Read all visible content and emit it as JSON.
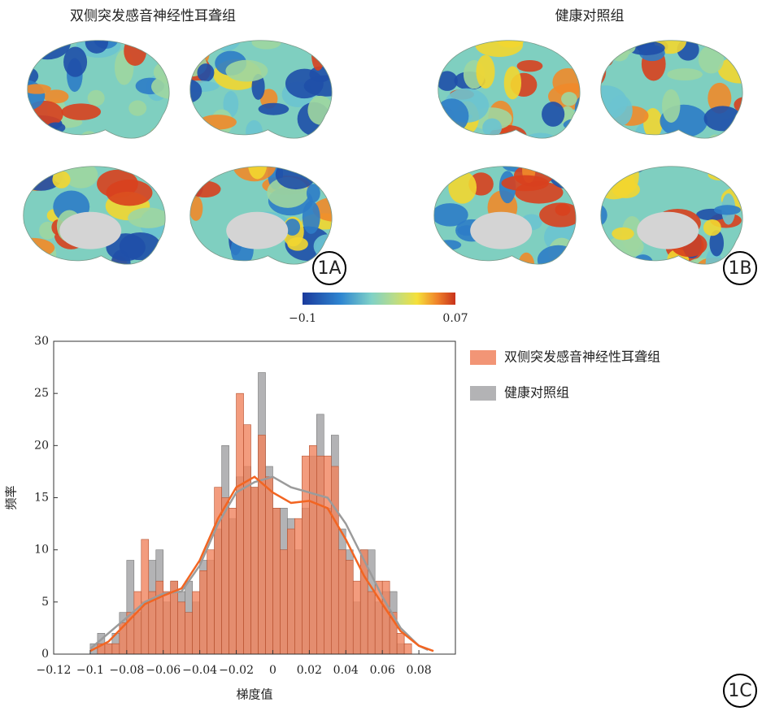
{
  "brain_maps": {
    "titles": [
      "双侧突发感音神经性耳聋组",
      "健康对照组"
    ],
    "labels": [
      "1A",
      "1B"
    ],
    "colorbar": {
      "range": [
        {
          "value": -0.1,
          "label": "−0.1"
        },
        0.07
      ]
    }
  },
  "panel_label": "1C",
  "chart_data": {
    "type": "histogram",
    "bins": [
      -0.1,
      -0.096,
      -0.092,
      -0.088,
      -0.084,
      -0.08,
      -0.076,
      -0.072,
      -0.068,
      -0.064,
      -0.06,
      -0.056,
      -0.052,
      -0.048,
      -0.044,
      -0.04,
      -0.036,
      -0.032,
      -0.028,
      -0.024,
      -0.02,
      -0.016,
      -0.012,
      -0.008,
      -0.004,
      0,
      0.004,
      0.008,
      0.012,
      0.016,
      0.02,
      0.024,
      0.028,
      0.032,
      0.036,
      0.04,
      0.044,
      0.048,
      0.052,
      0.056,
      0.06,
      0.064,
      0.068,
      0.072,
      0.076
    ],
    "series": [
      {
        "name": "健康对照组",
        "color": "#a6a6a8",
        "values": [
          1,
          2,
          1,
          2,
          4,
          9,
          4,
          5,
          9,
          10,
          5,
          7,
          6,
          7,
          5,
          9,
          9,
          12,
          20,
          13,
          17,
          18,
          16,
          27,
          18,
          14,
          14,
          13,
          10,
          14,
          19,
          23,
          14,
          21,
          12,
          10,
          5,
          10,
          10,
          5,
          6,
          6,
          1,
          0
        ],
        "kde": {
          "x": [
            -0.1,
            -0.09,
            -0.08,
            -0.07,
            -0.06,
            -0.05,
            -0.04,
            -0.03,
            -0.02,
            -0.01,
            0,
            0.01,
            0.02,
            0.03,
            0.04,
            0.05,
            0.06,
            0.07,
            0.08,
            0.085
          ],
          "values": [
            0.5,
            2,
            3.5,
            5,
            5.8,
            6,
            8.5,
            12.5,
            15.5,
            16.5,
            17,
            16,
            15.5,
            15,
            12.5,
            9,
            5.5,
            2.5,
            0.8,
            0.4
          ]
        }
      },
      {
        "name": "双侧突发感音神经性耳聋组",
        "color": "#f0835e",
        "values": [
          0,
          1,
          1,
          1,
          3,
          4,
          6,
          11,
          6,
          7,
          6,
          7,
          5,
          4,
          6,
          8,
          10,
          16,
          15,
          14,
          25,
          22,
          16,
          21,
          17,
          14,
          10,
          12,
          13,
          19,
          20,
          19,
          19,
          18,
          10,
          9,
          7,
          10,
          6,
          7,
          7,
          4,
          2,
          1
        ],
        "kde": {
          "x": [
            -0.1,
            -0.09,
            -0.08,
            -0.07,
            -0.06,
            -0.05,
            -0.04,
            -0.03,
            -0.02,
            -0.01,
            0,
            0.01,
            0.02,
            0.03,
            0.04,
            0.05,
            0.06,
            0.07,
            0.08,
            0.088
          ],
          "values": [
            0.3,
            1.2,
            3,
            4.8,
            5.6,
            6.3,
            9,
            13,
            16,
            17,
            15.5,
            14.5,
            14.7,
            14,
            11,
            7.5,
            4.8,
            2.2,
            0.8,
            0.3
          ]
        }
      }
    ],
    "line_colors": [
      "#9b9b9b",
      "#f26522"
    ],
    "xlabel": "梯度值",
    "ylabel": "频率",
    "xlim": [
      -0.12,
      0.1
    ],
    "ylim": [
      0,
      30
    ],
    "xticks": [
      {
        "value": -0.12,
        "label": "−0.12"
      },
      {
        "value": -0.1,
        "label": "−0.1"
      },
      {
        "value": -0.08,
        "label": "−0.08"
      },
      {
        "value": -0.06,
        "label": "−0.06"
      },
      {
        "value": -0.04,
        "label": "−0.04"
      },
      {
        "value": -0.02,
        "label": "−0.02"
      },
      0,
      0.02,
      0.04,
      0.06,
      0.08
    ],
    "yticks": [
      0,
      5,
      10,
      15,
      20,
      25,
      30
    ]
  }
}
